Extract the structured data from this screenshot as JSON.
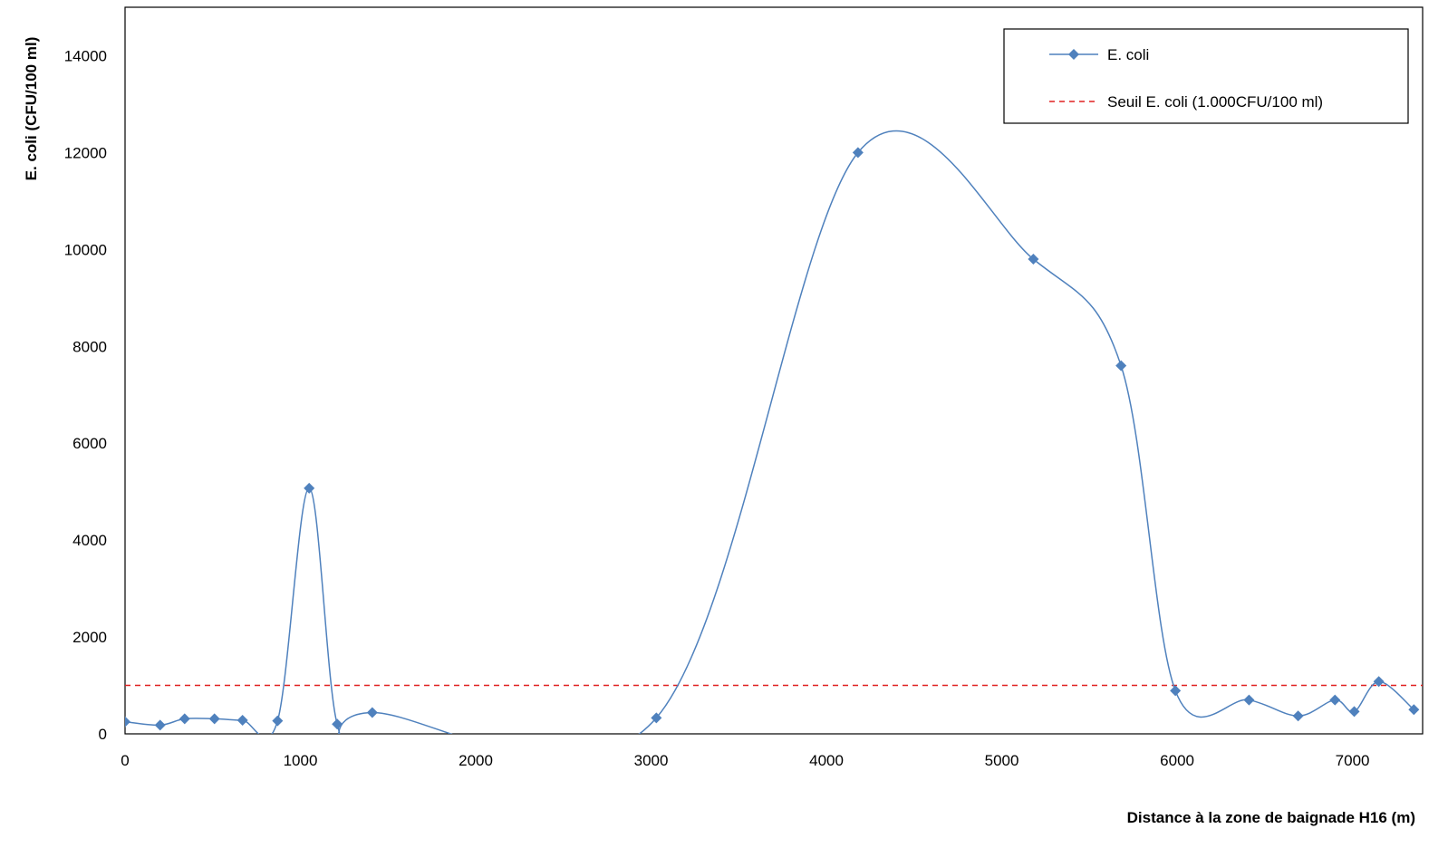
{
  "chart_data": {
    "type": "line",
    "xlabel": "Distance à la zone de baignade  H16 (m)",
    "ylabel": "E. coli (CFU/100 ml)",
    "xlim": [
      0,
      7400
    ],
    "ylim": [
      0,
      15000
    ],
    "x_ticks": [
      0,
      1000,
      2000,
      3000,
      4000,
      5000,
      6000,
      7000
    ],
    "y_ticks": [
      0,
      2000,
      4000,
      6000,
      8000,
      10000,
      12000,
      14000
    ],
    "grid": false,
    "legend_position": "top-right",
    "series": [
      {
        "name": "E. coli",
        "color": "#4f81bd",
        "marker": "diamond",
        "smooth": true,
        "x": [
          0,
          200,
          340,
          510,
          670,
          870,
          1050,
          1210,
          1410,
          3030,
          4180,
          5180,
          5680,
          5990,
          6410,
          6690,
          6900,
          7010,
          7150,
          7350
        ],
        "y": [
          250,
          180,
          310,
          310,
          280,
          270,
          5070,
          200,
          440,
          330,
          12000,
          9800,
          7600,
          890,
          700,
          370,
          700,
          460,
          1080,
          500
        ]
      }
    ],
    "threshold": {
      "name": "Seuil E. coli (1.000CFU/100 ml)",
      "value": 1000,
      "color": "#e02020",
      "style": "dashed"
    }
  }
}
